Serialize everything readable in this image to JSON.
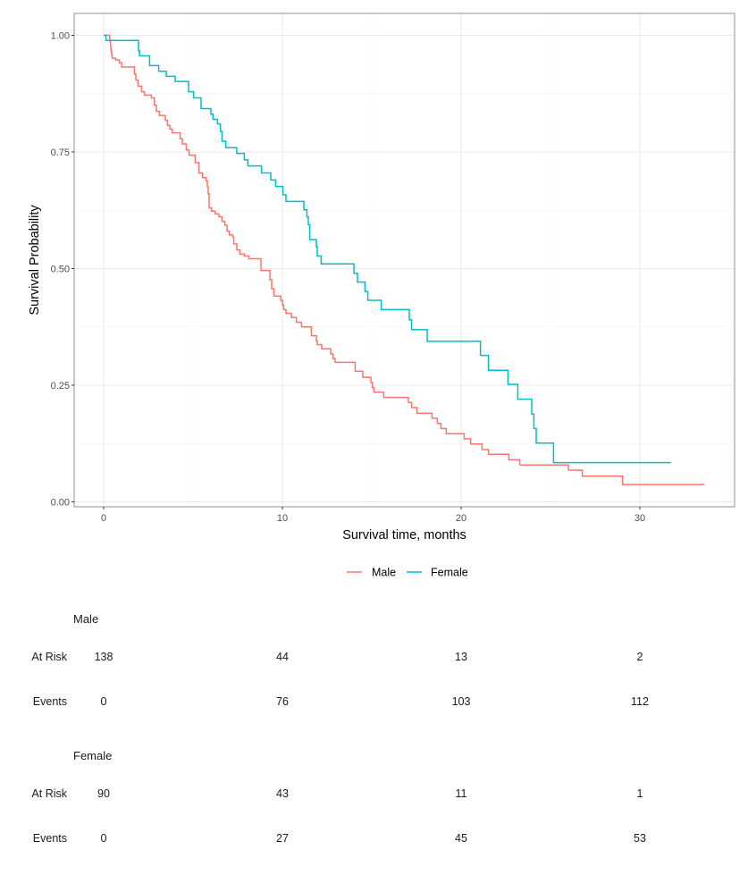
{
  "chart_data": {
    "type": "line",
    "subtype": "kaplan-meier-step",
    "title": "",
    "xlabel": "Survival time, months",
    "ylabel": "Survival Probability",
    "xlim": [
      -1.65,
      35.3
    ],
    "ylim": [
      -0.045,
      1.045
    ],
    "x_ticks": [
      0,
      10,
      20,
      30
    ],
    "x_tick_labels": [
      "0",
      "10",
      "20",
      "30"
    ],
    "y_ticks": [
      0,
      0.25,
      0.5,
      0.75,
      1.0
    ],
    "y_tick_labels": [
      "0.00",
      "0.25",
      "0.50",
      "0.75",
      "1.00"
    ],
    "x_minor_grid": [
      5,
      15,
      25,
      35
    ],
    "y_minor_grid": [
      0.125,
      0.375,
      0.625,
      0.875
    ],
    "grid": true,
    "legend_position": "bottom",
    "series": [
      {
        "name": "Male",
        "color": "#F8766D",
        "steps": [
          [
            0,
            1.0
          ],
          [
            0.33,
            0.993
          ],
          [
            0.36,
            0.986
          ],
          [
            0.38,
            0.978
          ],
          [
            0.4,
            0.971
          ],
          [
            0.42,
            0.964
          ],
          [
            0.45,
            0.957
          ],
          [
            0.48,
            0.951
          ],
          [
            0.67,
            0.947
          ],
          [
            0.88,
            0.941
          ],
          [
            1.0,
            0.932
          ],
          [
            1.72,
            0.917
          ],
          [
            1.8,
            0.904
          ],
          [
            1.92,
            0.891
          ],
          [
            2.12,
            0.879
          ],
          [
            2.28,
            0.872
          ],
          [
            2.67,
            0.866
          ],
          [
            2.83,
            0.85
          ],
          [
            2.95,
            0.837
          ],
          [
            3.12,
            0.828
          ],
          [
            3.45,
            0.818
          ],
          [
            3.57,
            0.807
          ],
          [
            3.7,
            0.799
          ],
          [
            3.83,
            0.791
          ],
          [
            4.28,
            0.778
          ],
          [
            4.4,
            0.767
          ],
          [
            4.62,
            0.754
          ],
          [
            4.78,
            0.743
          ],
          [
            5.12,
            0.727
          ],
          [
            5.33,
            0.705
          ],
          [
            5.53,
            0.695
          ],
          [
            5.73,
            0.688
          ],
          [
            5.8,
            0.675
          ],
          [
            5.85,
            0.66
          ],
          [
            5.9,
            0.63
          ],
          [
            6.03,
            0.623
          ],
          [
            6.23,
            0.617
          ],
          [
            6.45,
            0.611
          ],
          [
            6.62,
            0.601
          ],
          [
            6.78,
            0.593
          ],
          [
            6.9,
            0.58
          ],
          [
            7.03,
            0.572
          ],
          [
            7.23,
            0.567
          ],
          [
            7.28,
            0.553
          ],
          [
            7.45,
            0.54
          ],
          [
            7.62,
            0.531
          ],
          [
            7.87,
            0.527
          ],
          [
            8.12,
            0.521
          ],
          [
            8.8,
            0.496
          ],
          [
            9.3,
            0.476
          ],
          [
            9.4,
            0.457
          ],
          [
            9.53,
            0.441
          ],
          [
            9.9,
            0.432
          ],
          [
            10.0,
            0.422
          ],
          [
            10.07,
            0.412
          ],
          [
            10.2,
            0.404
          ],
          [
            10.5,
            0.395
          ],
          [
            10.78,
            0.385
          ],
          [
            11.07,
            0.375
          ],
          [
            11.62,
            0.356
          ],
          [
            11.9,
            0.345
          ],
          [
            11.95,
            0.337
          ],
          [
            12.2,
            0.328
          ],
          [
            12.7,
            0.317
          ],
          [
            12.83,
            0.307
          ],
          [
            12.95,
            0.299
          ],
          [
            14.07,
            0.28
          ],
          [
            14.5,
            0.267
          ],
          [
            14.95,
            0.256
          ],
          [
            15.03,
            0.245
          ],
          [
            15.12,
            0.235
          ],
          [
            15.67,
            0.224
          ],
          [
            17.05,
            0.213
          ],
          [
            17.23,
            0.202
          ],
          [
            17.53,
            0.19
          ],
          [
            18.37,
            0.179
          ],
          [
            18.67,
            0.168
          ],
          [
            18.87,
            0.157
          ],
          [
            19.17,
            0.146
          ],
          [
            20.17,
            0.135
          ],
          [
            20.53,
            0.124
          ],
          [
            21.17,
            0.112
          ],
          [
            21.53,
            0.102
          ],
          [
            22.67,
            0.09
          ],
          [
            23.28,
            0.079
          ],
          [
            26.0,
            0.068
          ],
          [
            26.78,
            0.055
          ],
          [
            29.03,
            0.037
          ],
          [
            33.6,
            0.037
          ]
        ]
      },
      {
        "name": "Female",
        "color": "#00BFC4",
        "steps": [
          [
            0,
            1.0
          ],
          [
            0.13,
            0.989
          ],
          [
            1.95,
            0.967
          ],
          [
            2.0,
            0.956
          ],
          [
            2.57,
            0.935
          ],
          [
            3.08,
            0.923
          ],
          [
            3.5,
            0.912
          ],
          [
            4.0,
            0.901
          ],
          [
            4.75,
            0.879
          ],
          [
            5.03,
            0.866
          ],
          [
            5.45,
            0.843
          ],
          [
            6.0,
            0.831
          ],
          [
            6.12,
            0.82
          ],
          [
            6.37,
            0.81
          ],
          [
            6.53,
            0.794
          ],
          [
            6.62,
            0.773
          ],
          [
            6.83,
            0.759
          ],
          [
            7.45,
            0.747
          ],
          [
            7.87,
            0.733
          ],
          [
            8.07,
            0.72
          ],
          [
            8.83,
            0.705
          ],
          [
            9.35,
            0.69
          ],
          [
            9.62,
            0.676
          ],
          [
            10.03,
            0.658
          ],
          [
            10.2,
            0.644
          ],
          [
            11.2,
            0.626
          ],
          [
            11.37,
            0.611
          ],
          [
            11.45,
            0.594
          ],
          [
            11.53,
            0.562
          ],
          [
            11.9,
            0.547
          ],
          [
            11.95,
            0.527
          ],
          [
            12.17,
            0.51
          ],
          [
            14.0,
            0.49
          ],
          [
            14.2,
            0.471
          ],
          [
            14.62,
            0.451
          ],
          [
            14.78,
            0.432
          ],
          [
            15.53,
            0.412
          ],
          [
            17.1,
            0.39
          ],
          [
            17.23,
            0.369
          ],
          [
            18.1,
            0.344
          ],
          [
            21.08,
            0.314
          ],
          [
            21.53,
            0.282
          ],
          [
            22.62,
            0.252
          ],
          [
            23.17,
            0.22
          ],
          [
            23.95,
            0.188
          ],
          [
            24.07,
            0.157
          ],
          [
            24.2,
            0.126
          ],
          [
            25.17,
            0.084
          ],
          [
            31.73,
            0.084
          ]
        ]
      }
    ],
    "risk_table": {
      "time_points": [
        0,
        10,
        20,
        30
      ],
      "row_labels": {
        "at_risk": "At Risk",
        "events": "Events"
      },
      "groups": [
        {
          "name": "Male",
          "at_risk": [
            "138",
            "44",
            "13",
            "2"
          ],
          "events": [
            "0",
            "76",
            "103",
            "112"
          ]
        },
        {
          "name": "Female",
          "at_risk": [
            "90",
            "43",
            "11",
            "1"
          ],
          "events": [
            "0",
            "27",
            "45",
            "53"
          ]
        }
      ]
    }
  }
}
